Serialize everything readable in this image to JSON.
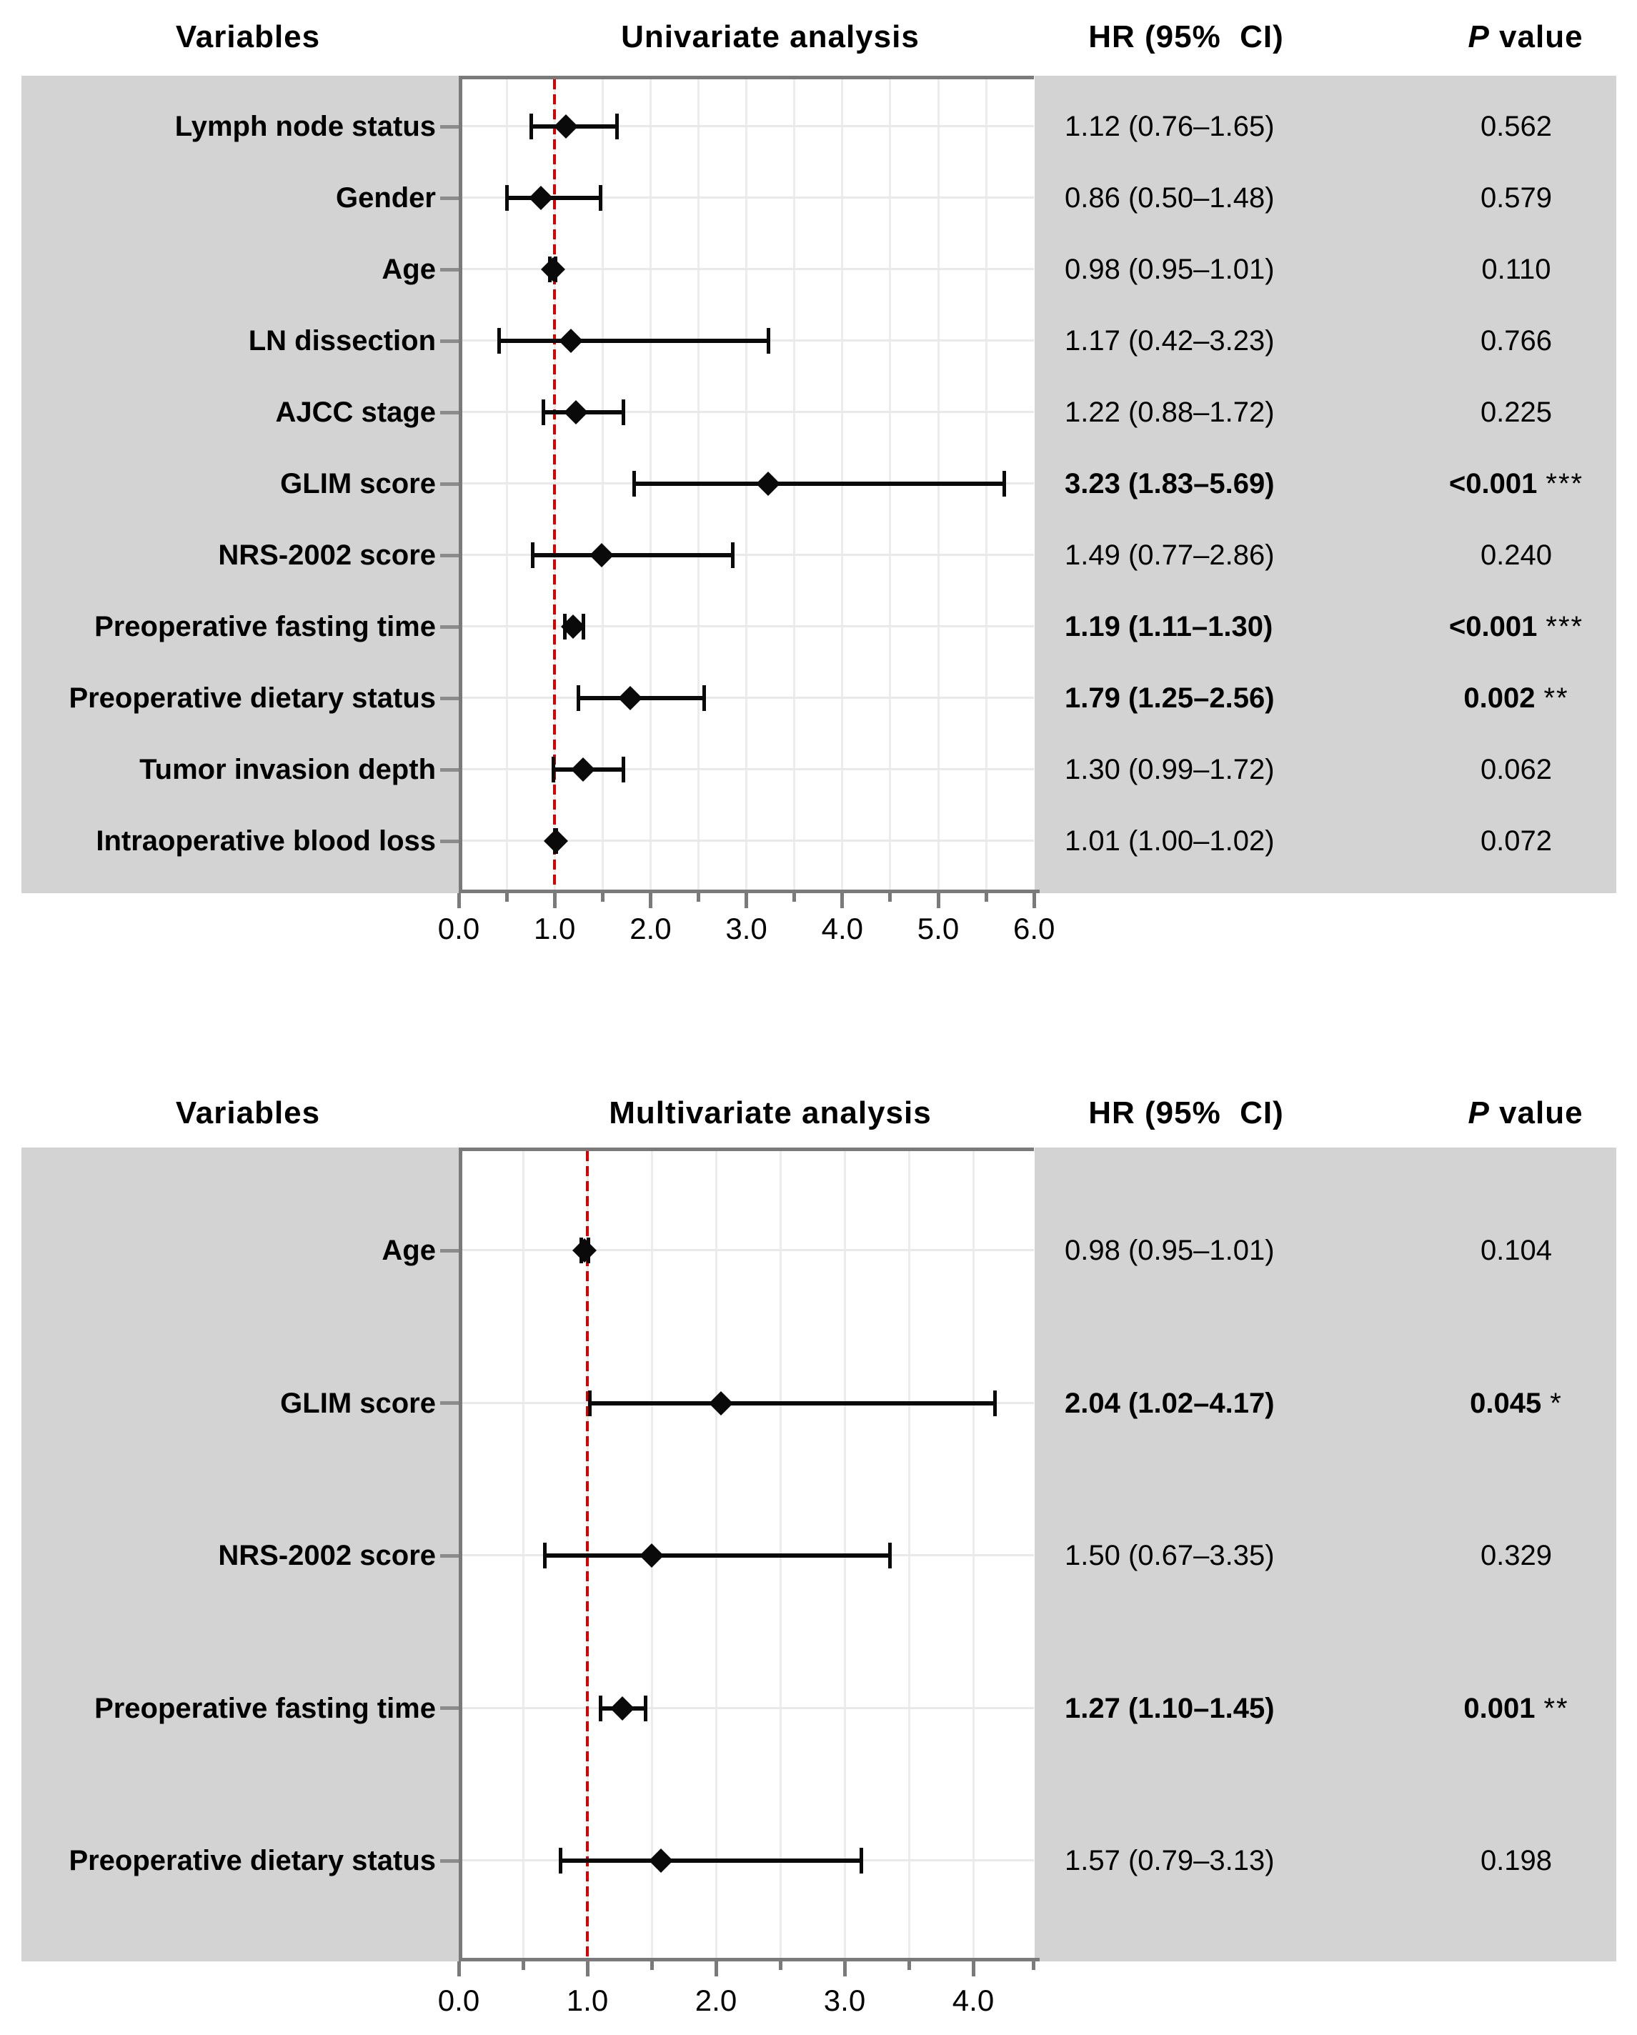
{
  "colors": {
    "panel_background": "#d3d3d3",
    "plot_border": "#7a7a7a",
    "grid_vertical": "#ececec",
    "grid_horizontal": "#e9e9e9",
    "reference_line_red": "#d60000",
    "marker_black": "#0a0a0a",
    "text": "#000000"
  },
  "chart_data": [
    {
      "type": "forest",
      "title": "Univariate analysis",
      "headers": {
        "variables": "Variables",
        "hr": "HR (95%  CI)",
        "p_italic": "P",
        "p_rest": " value"
      },
      "x_axis": {
        "min": 0.0,
        "max": 6.0,
        "major_step": 1.0,
        "minor_step": 0.5,
        "major_ticks": [
          0,
          1,
          2,
          3,
          4,
          5,
          6
        ],
        "minor_ticks": [
          0.5,
          1.5,
          2.5,
          3.5,
          4.5,
          5.5
        ],
        "tick_labels": [
          "0.0",
          "1.0",
          "2.0",
          "3.0",
          "4.0",
          "5.0",
          "6.0"
        ],
        "reference_line": 1.0,
        "grid": true
      },
      "legend_position": "none",
      "rows": [
        {
          "label": "Lymph node status",
          "hr": 1.12,
          "ci_low": 0.76,
          "ci_high": 1.65,
          "hr_text": "1.12 (0.76–1.65)",
          "p_text": "0.562",
          "stars": "",
          "significant": false
        },
        {
          "label": "Gender",
          "hr": 0.86,
          "ci_low": 0.5,
          "ci_high": 1.48,
          "hr_text": "0.86 (0.50–1.48)",
          "p_text": "0.579",
          "stars": "",
          "significant": false
        },
        {
          "label": "Age",
          "hr": 0.98,
          "ci_low": 0.95,
          "ci_high": 1.01,
          "hr_text": "0.98 (0.95–1.01)",
          "p_text": "0.110",
          "stars": "",
          "significant": false
        },
        {
          "label": "LN dissection",
          "hr": 1.17,
          "ci_low": 0.42,
          "ci_high": 3.23,
          "hr_text": "1.17 (0.42–3.23)",
          "p_text": "0.766",
          "stars": "",
          "significant": false
        },
        {
          "label": "AJCC stage",
          "hr": 1.22,
          "ci_low": 0.88,
          "ci_high": 1.72,
          "hr_text": "1.22 (0.88–1.72)",
          "p_text": "0.225",
          "stars": "",
          "significant": false
        },
        {
          "label": "GLIM score",
          "hr": 3.23,
          "ci_low": 1.83,
          "ci_high": 5.69,
          "hr_text": "3.23 (1.83–5.69)",
          "p_text": "<0.001",
          "stars": "***",
          "significant": true
        },
        {
          "label": "NRS-2002 score",
          "hr": 1.49,
          "ci_low": 0.77,
          "ci_high": 2.86,
          "hr_text": "1.49 (0.77–2.86)",
          "p_text": "0.240",
          "stars": "",
          "significant": false
        },
        {
          "label": "Preoperative fasting time",
          "hr": 1.19,
          "ci_low": 1.11,
          "ci_high": 1.3,
          "hr_text": "1.19 (1.11–1.30)",
          "p_text": "<0.001",
          "stars": "***",
          "significant": true
        },
        {
          "label": "Preoperative dietary status",
          "hr": 1.79,
          "ci_low": 1.25,
          "ci_high": 2.56,
          "hr_text": "1.79 (1.25–2.56)",
          "p_text": "0.002",
          "stars": "**",
          "significant": true
        },
        {
          "label": "Tumor invasion depth",
          "hr": 1.3,
          "ci_low": 0.99,
          "ci_high": 1.72,
          "hr_text": "1.30 (0.99–1.72)",
          "p_text": "0.062",
          "stars": "",
          "significant": false
        },
        {
          "label": "Intraoperative blood loss",
          "hr": 1.01,
          "ci_low": 1.0,
          "ci_high": 1.02,
          "hr_text": "1.01 (1.00–1.02)",
          "p_text": "0.072",
          "stars": "",
          "significant": false
        }
      ]
    },
    {
      "type": "forest",
      "title": "Multivariate analysis",
      "headers": {
        "variables": "Variables",
        "hr": "HR (95%  CI)",
        "p_italic": "P",
        "p_rest": " value"
      },
      "x_axis": {
        "min": 0.0,
        "max": 4.47,
        "major_step": 1.0,
        "minor_step": 0.5,
        "major_ticks": [
          0,
          1,
          2,
          3,
          4
        ],
        "minor_ticks": [
          0.5,
          1.5,
          2.5,
          3.5,
          4.47
        ],
        "tick_labels": [
          "0.0",
          "1.0",
          "2.0",
          "3.0",
          "4.0"
        ],
        "reference_line": 1.0,
        "grid": true
      },
      "legend_position": "none",
      "rows": [
        {
          "label": "Age",
          "hr": 0.98,
          "ci_low": 0.95,
          "ci_high": 1.01,
          "hr_text": "0.98 (0.95–1.01)",
          "p_text": "0.104",
          "stars": "",
          "significant": false
        },
        {
          "label": "GLIM score",
          "hr": 2.04,
          "ci_low": 1.02,
          "ci_high": 4.17,
          "hr_text": "2.04 (1.02–4.17)",
          "p_text": "0.045",
          "stars": "*",
          "significant": true
        },
        {
          "label": "NRS-2002 score",
          "hr": 1.5,
          "ci_low": 0.67,
          "ci_high": 3.35,
          "hr_text": "1.50 (0.67–3.35)",
          "p_text": "0.329",
          "stars": "",
          "significant": false
        },
        {
          "label": "Preoperative fasting time",
          "hr": 1.27,
          "ci_low": 1.1,
          "ci_high": 1.45,
          "hr_text": "1.27 (1.10–1.45)",
          "p_text": "0.001",
          "stars": "**",
          "significant": true
        },
        {
          "label": "Preoperative dietary status",
          "hr": 1.57,
          "ci_low": 0.79,
          "ci_high": 3.13,
          "hr_text": "1.57 (0.79–3.13)",
          "p_text": "0.198",
          "stars": "",
          "significant": false
        }
      ]
    }
  ]
}
